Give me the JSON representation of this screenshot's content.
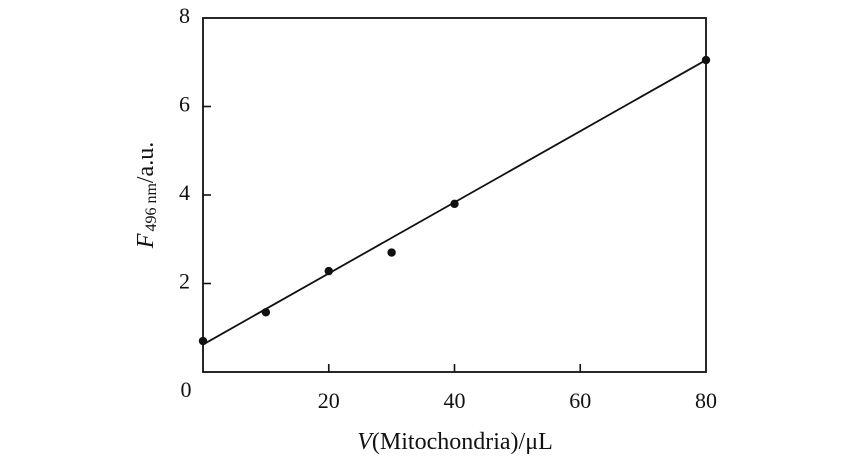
{
  "chart_data": {
    "type": "scatter",
    "xlabel": {
      "var": "V",
      "rest": "(Mitochondria)/μL"
    },
    "ylabel": {
      "var": "F",
      "sub": "496 nm",
      "rest": "/a.u."
    },
    "xlim": [
      0,
      80
    ],
    "ylim": [
      0,
      8
    ],
    "x_ticks": [
      0,
      20,
      40,
      60,
      80
    ],
    "y_ticks": [
      2,
      4,
      6,
      8
    ],
    "origin_label": "0",
    "grid": false,
    "points": [
      {
        "x": 0,
        "y": 0.7
      },
      {
        "x": 10,
        "y": 1.35
      },
      {
        "x": 20,
        "y": 2.28
      },
      {
        "x": 30,
        "y": 2.7
      },
      {
        "x": 40,
        "y": 3.8
      },
      {
        "x": 80,
        "y": 7.05
      }
    ],
    "fit_line": {
      "x": [
        0,
        80
      ],
      "y": [
        0.62,
        7.05
      ]
    },
    "colors": {
      "marker": "#111111",
      "line": "#111111",
      "axes": "#111111"
    }
  }
}
